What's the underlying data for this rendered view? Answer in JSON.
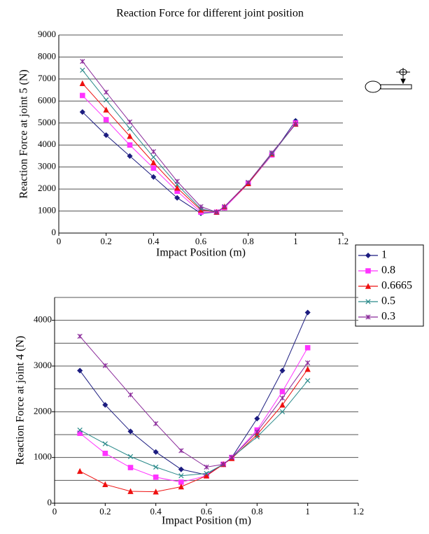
{
  "chart_data": [
    {
      "type": "line",
      "title": "Reaction Force for different joint position",
      "x_label": "Impact Position (m)",
      "y_label": "Reaction Force at joint 5 (N)",
      "x": [
        0.1,
        0.2,
        0.3,
        0.4,
        0.5,
        0.6,
        0.6665,
        0.7,
        0.8,
        0.9,
        1.0
      ],
      "xlim": [
        0,
        1.2
      ],
      "xticks": [
        0,
        0.2,
        0.4,
        0.6,
        0.8,
        1,
        1.2
      ],
      "ylim": [
        0,
        9000
      ],
      "yticks": [
        0,
        1000,
        2000,
        3000,
        4000,
        5000,
        6000,
        7000,
        8000,
        9000
      ],
      "grid": true,
      "series": [
        {
          "name": "1",
          "color": "#1c1c80",
          "marker": "diamond",
          "values": [
            5500,
            4450,
            3500,
            2550,
            1600,
            900,
            950,
            1150,
            2250,
            3550,
            5100
          ]
        },
        {
          "name": "0.8",
          "color": "#ff33ff",
          "marker": "square",
          "values": [
            6250,
            5150,
            4000,
            2950,
            1900,
            950,
            950,
            1150,
            2250,
            3550,
            5000
          ]
        },
        {
          "name": "0.6665",
          "color": "#ee1111",
          "marker": "triangle",
          "values": [
            6800,
            5600,
            4400,
            3200,
            2050,
            1050,
            950,
            1200,
            2250,
            3600,
            4950
          ]
        },
        {
          "name": "0.5",
          "color": "#2a8a8a",
          "marker": "x",
          "values": [
            7400,
            6050,
            4750,
            3450,
            2200,
            1100,
            950,
            1200,
            2300,
            3600,
            4950
          ]
        },
        {
          "name": "0.3",
          "color": "#8a2a9a",
          "marker": "star",
          "values": [
            7800,
            6400,
            5050,
            3700,
            2350,
            1200,
            950,
            1200,
            2300,
            3650,
            4950
          ]
        }
      ]
    },
    {
      "type": "line",
      "x_label": "Impact Position (m)",
      "y_label": "Reaction Force at joint 4 (N)",
      "x": [
        0.1,
        0.2,
        0.3,
        0.4,
        0.5,
        0.6,
        0.6665,
        0.7,
        0.8,
        0.9,
        1.0
      ],
      "xlim": [
        0,
        1.2
      ],
      "xticks": [
        0,
        0.2,
        0.4,
        0.6,
        0.8,
        1,
        1.2
      ],
      "ylim": [
        0,
        4500
      ],
      "yticks": [
        0,
        1000,
        2000,
        3000,
        4000
      ],
      "grid": true,
      "grid_step": 500,
      "series": [
        {
          "color": "#1c1c80",
          "marker": "diamond",
          "values": [
            2900,
            2150,
            1570,
            1120,
            740,
            620,
            850,
            1000,
            1850,
            2900,
            4170
          ]
        },
        {
          "color": "#ff33ff",
          "marker": "square",
          "values": [
            1530,
            1090,
            780,
            570,
            460,
            600,
            850,
            1000,
            1600,
            2440,
            3400
          ]
        },
        {
          "color": "#ee1111",
          "marker": "triangle",
          "values": [
            700,
            410,
            260,
            250,
            360,
            600,
            850,
            980,
            1500,
            2150,
            2930
          ]
        },
        {
          "color": "#2a8a8a",
          "marker": "x",
          "values": [
            1600,
            1300,
            1020,
            790,
            600,
            650,
            850,
            1000,
            1450,
            2000,
            2680
          ]
        },
        {
          "color": "#8a2a9a",
          "marker": "star",
          "values": [
            3650,
            3010,
            2370,
            1740,
            1150,
            790,
            850,
            1000,
            1560,
            2300,
            3070
          ]
        }
      ]
    }
  ]
}
